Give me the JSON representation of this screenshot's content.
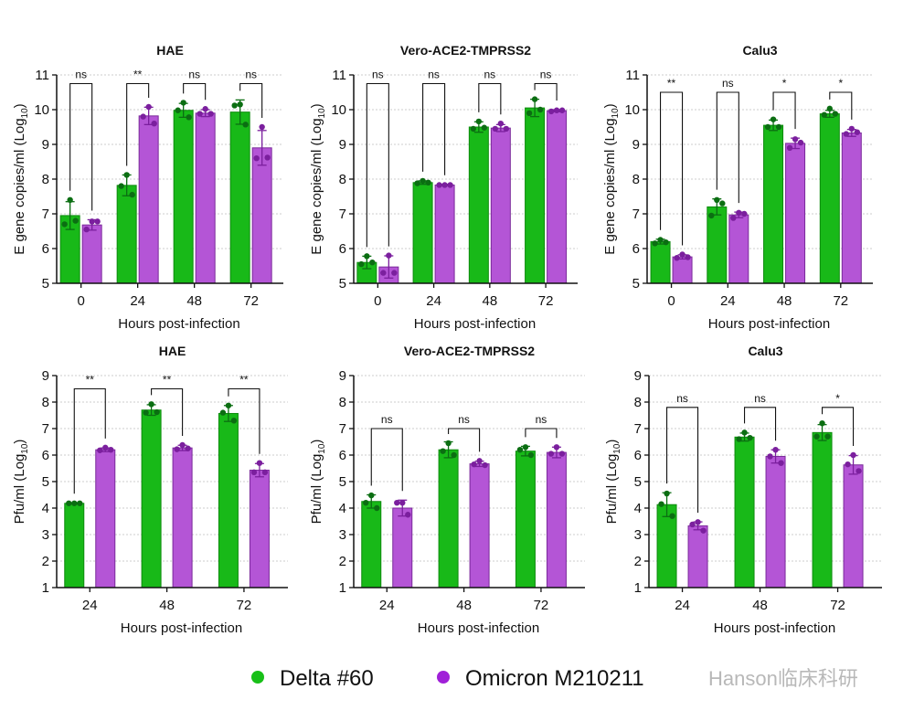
{
  "colors": {
    "delta": "#18b918",
    "delta_point": "#0b6e12",
    "omicron": "#b455d6",
    "omicron_point": "#7b1f9e",
    "axis": "#111111",
    "grid": "#cccccc"
  },
  "legend": [
    {
      "label": "Delta #60",
      "color": "#18c018",
      "icon": "circle-icon"
    },
    {
      "label": "Omicron M210211",
      "color": "#a020d8",
      "icon": "circle-icon"
    }
  ],
  "watermark": "Hanson临床科研",
  "chart_data": [
    {
      "type": "bar",
      "title": "HAE",
      "xlabel": "Hours post-infection",
      "ylabel": "E gene copies/ml (Log",
      "ylabel_sub": "10",
      "ylabel_end": ")",
      "ylim": [
        5,
        11
      ],
      "yticks": [
        5,
        6,
        7,
        8,
        9,
        10,
        11
      ],
      "grid": true,
      "categories": [
        "0",
        "24",
        "48",
        "72"
      ],
      "series": [
        {
          "name": "Delta #60",
          "values": [
            6.95,
            7.82,
            9.98,
            9.93
          ],
          "sd": [
            0.4,
            0.3,
            0.2,
            0.35
          ],
          "points": [
            [
              7.4,
              6.7,
              6.8
            ],
            [
              8.12,
              7.8,
              7.55
            ],
            [
              10.2,
              9.98,
              9.78
            ],
            [
              10.15,
              10.12,
              9.57
            ]
          ]
        },
        {
          "name": "Omicron M210211",
          "values": [
            6.68,
            9.82,
            9.9,
            8.9
          ],
          "sd": [
            0.15,
            0.25,
            0.1,
            0.5
          ],
          "points": [
            [
              6.78,
              6.55,
              6.78
            ],
            [
              10.08,
              9.8,
              9.6
            ],
            [
              10.02,
              9.88,
              9.88
            ],
            [
              9.5,
              8.6,
              8.62
            ]
          ]
        }
      ],
      "significance": [
        "ns",
        "**",
        "ns",
        "ns"
      ]
    },
    {
      "type": "bar",
      "title": "Vero-ACE2-TMPRSS2",
      "xlabel": "Hours post-infection",
      "ylabel": "E gene copies/ml (Log",
      "ylabel_sub": "10",
      "ylabel_end": ")",
      "ylim": [
        5,
        11
      ],
      "yticks": [
        5,
        6,
        7,
        8,
        9,
        10,
        11
      ],
      "grid": true,
      "categories": [
        "0",
        "24",
        "48",
        "72"
      ],
      "series": [
        {
          "name": "Delta #60",
          "values": [
            5.6,
            7.9,
            9.5,
            10.05
          ],
          "sd": [
            0.18,
            0.05,
            0.15,
            0.25
          ],
          "points": [
            [
              5.78,
              5.55,
              5.6
            ],
            [
              7.95,
              7.88,
              7.9
            ],
            [
              9.66,
              9.45,
              9.48
            ],
            [
              10.3,
              9.9,
              10.0
            ]
          ]
        },
        {
          "name": "Omicron M210211",
          "values": [
            5.47,
            7.83,
            9.47,
            9.97
          ],
          "sd": [
            0.32,
            0.02,
            0.1,
            0.03
          ],
          "points": [
            [
              5.8,
              5.3,
              5.3
            ],
            [
              7.83,
              7.83,
              7.83
            ],
            [
              9.6,
              9.45,
              9.45
            ],
            [
              9.98,
              9.95,
              9.98
            ]
          ]
        }
      ],
      "significance": [
        "ns",
        "ns",
        "ns",
        "ns"
      ]
    },
    {
      "type": "bar",
      "title": "Calu3",
      "xlabel": "Hours post-infection",
      "ylabel": "E gene copies/ml (Log",
      "ylabel_sub": "10",
      "ylabel_end": ")",
      "ylim": [
        5,
        11
      ],
      "yticks": [
        5,
        6,
        7,
        8,
        9,
        10,
        11
      ],
      "grid": true,
      "categories": [
        "0",
        "24",
        "48",
        "72"
      ],
      "series": [
        {
          "name": "Delta #60",
          "values": [
            6.2,
            7.2,
            9.55,
            9.88
          ],
          "sd": [
            0.07,
            0.23,
            0.15,
            0.1
          ],
          "points": [
            [
              6.25,
              6.15,
              6.18
            ],
            [
              7.4,
              6.95,
              7.3
            ],
            [
              9.72,
              9.5,
              9.5
            ],
            [
              10.03,
              9.85,
              9.88
            ]
          ]
        },
        {
          "name": "Omicron M210211",
          "values": [
            5.76,
            6.97,
            9.03,
            9.33
          ],
          "sd": [
            0.06,
            0.08,
            0.15,
            0.1
          ],
          "points": [
            [
              5.83,
              5.73,
              5.75
            ],
            [
              7.03,
              6.88,
              7.0
            ],
            [
              9.15,
              8.9,
              9.05
            ],
            [
              9.45,
              9.3,
              9.35
            ]
          ]
        }
      ],
      "significance": [
        "**",
        "ns",
        "*",
        "*"
      ]
    },
    {
      "type": "bar",
      "title": "HAE",
      "xlabel": "Hours post-infection",
      "ylabel": "Pfu/ml (Log",
      "ylabel_sub": "10",
      "ylabel_end": ")",
      "ylim": [
        1,
        9
      ],
      "yticks": [
        1,
        2,
        3,
        4,
        5,
        6,
        7,
        8,
        9
      ],
      "grid": true,
      "categories": [
        "24",
        "48",
        "72"
      ],
      "series": [
        {
          "name": "Delta #60",
          "values": [
            4.18,
            7.7,
            7.57
          ],
          "sd": [
            0.02,
            0.2,
            0.3
          ],
          "points": [
            [
              4.18,
              4.18,
              4.18
            ],
            [
              7.92,
              7.6,
              7.62
            ],
            [
              7.87,
              7.6,
              7.3
            ]
          ]
        },
        {
          "name": "Omicron M210211",
          "values": [
            6.2,
            6.27,
            5.43
          ],
          "sd": [
            0.07,
            0.1,
            0.25
          ],
          "points": [
            [
              6.28,
              6.18,
              6.2
            ],
            [
              6.38,
              6.22,
              6.25
            ],
            [
              5.7,
              5.35,
              5.35
            ]
          ]
        }
      ],
      "significance": [
        "**",
        "**",
        "**"
      ]
    },
    {
      "type": "bar",
      "title": "Vero-ACE2-TMPRSS2",
      "xlabel": "Hours post-infection",
      "ylabel": "Pfu/ml (Log",
      "ylabel_sub": "10",
      "ylabel_end": ")",
      "ylim": [
        1,
        9
      ],
      "yticks": [
        1,
        2,
        3,
        4,
        5,
        6,
        7,
        8,
        9
      ],
      "grid": true,
      "categories": [
        "24",
        "48",
        "72"
      ],
      "series": [
        {
          "name": "Delta #60",
          "values": [
            4.25,
            6.2,
            6.15
          ],
          "sd": [
            0.25,
            0.3,
            0.18
          ],
          "points": [
            [
              4.48,
              4.2,
              4.0
            ],
            [
              6.45,
              6.15,
              6.0
            ],
            [
              6.3,
              6.2,
              6.0
            ]
          ]
        },
        {
          "name": "Omicron M210211",
          "values": [
            4.0,
            5.67,
            6.1
          ],
          "sd": [
            0.3,
            0.1,
            0.2
          ],
          "points": [
            [
              4.2,
              4.2,
              3.75
            ],
            [
              5.78,
              5.65,
              5.62
            ],
            [
              6.3,
              6.05,
              6.05
            ]
          ]
        }
      ],
      "significance": [
        "ns",
        "ns",
        "ns"
      ]
    },
    {
      "type": "bar",
      "title": "Calu3",
      "xlabel": "Hours post-infection",
      "ylabel": "Pfu/ml (Log",
      "ylabel_sub": "10",
      "ylabel_end": ")",
      "ylim": [
        1,
        9
      ],
      "yticks": [
        1,
        2,
        3,
        4,
        5,
        6,
        7,
        8,
        9
      ],
      "grid": true,
      "categories": [
        "24",
        "48",
        "72"
      ],
      "series": [
        {
          "name": "Delta #60",
          "values": [
            4.13,
            6.68,
            6.85
          ],
          "sd": [
            0.45,
            0.15,
            0.3
          ],
          "points": [
            [
              4.55,
              4.15,
              3.7
            ],
            [
              6.85,
              6.6,
              6.65
            ],
            [
              7.2,
              6.7,
              6.7
            ]
          ]
        },
        {
          "name": "Omicron M210211",
          "values": [
            3.33,
            5.95,
            5.63
          ],
          "sd": [
            0.15,
            0.25,
            0.35
          ],
          "points": [
            [
              3.47,
              3.38,
              3.15
            ],
            [
              6.2,
              5.95,
              5.7
            ],
            [
              6.0,
              5.65,
              5.4
            ]
          ]
        }
      ],
      "significance": [
        "ns",
        "ns",
        "*"
      ]
    }
  ]
}
